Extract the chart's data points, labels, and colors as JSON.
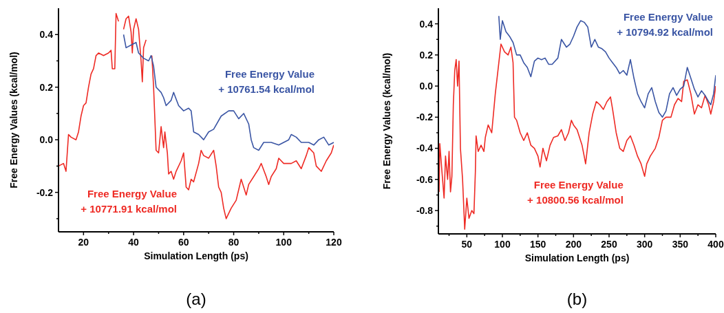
{
  "chart_data": [
    {
      "type": "line",
      "xlabel": "Simulation Length (ps)",
      "ylabel": "Free Energy Values (kcal/mol)",
      "annotations": [
        "(a)"
      ],
      "xlim": [
        10,
        120
      ],
      "ylim": [
        -0.35,
        0.5
      ],
      "xticks": [
        20,
        {
          "value": 30,
          "label": null
        },
        40,
        {
          "value": 50,
          "label": null
        },
        60,
        {
          "value": 70,
          "label": null
        },
        80,
        {
          "value": 90,
          "label": null
        },
        100,
        {
          "value": 110,
          "label": null
        },
        120
      ],
      "yticks": [
        {
          "value": -0.3,
          "label": null
        },
        -0.2,
        {
          "value": -0.1,
          "label": null
        },
        {
          "value": 0,
          "label": "0.0"
        },
        {
          "value": 0.1,
          "label": null
        },
        0.2,
        {
          "value": 0.3,
          "label": null
        },
        0.4
      ],
      "grid": false,
      "series": [
        {
          "name": "Free Energy Value\n+ 10771.91 kcal/mol",
          "color": "#ee2a24",
          "x": [
            10,
            12,
            13,
            14,
            15,
            17,
            18,
            19,
            20,
            21,
            22,
            23,
            24,
            25,
            26,
            28,
            30,
            31,
            31.5,
            32.5,
            33,
            34,
            35,
            36,
            37,
            38,
            39,
            39.5,
            40,
            41,
            42,
            43,
            43.5,
            44,
            45,
            46,
            47,
            47.3,
            48,
            48.5,
            49,
            50,
            51,
            52,
            52.5,
            53.5,
            54,
            55,
            56,
            57,
            59,
            60,
            61,
            62,
            63,
            64,
            66,
            67,
            68,
            70,
            72,
            73,
            74,
            75,
            76,
            77,
            79,
            81,
            83,
            84,
            85,
            86,
            88,
            90,
            91,
            93,
            94,
            95,
            97,
            98,
            100,
            103,
            105,
            107,
            109,
            110,
            112,
            113,
            115,
            117,
            119,
            120
          ],
          "values": [
            -0.1,
            -0.09,
            -0.12,
            0.02,
            0.01,
            0,
            0.03,
            0.09,
            0.13,
            0.14,
            0.2,
            0.25,
            0.27,
            0.32,
            0.33,
            0.32,
            0.33,
            0.34,
            0.27,
            0.27,
            0.48,
            0.45,
            null,
            0.42,
            0.46,
            0.47,
            0.41,
            0.33,
            0.42,
            0.46,
            0.42,
            0.3,
            0.22,
            0.35,
            0.38,
            null,
            null,
            0.32,
            0.2,
            0.08,
            -0.04,
            -0.05,
            0.05,
            -0.03,
            0.03,
            -0.05,
            -0.13,
            -0.12,
            -0.15,
            -0.12,
            -0.08,
            -0.05,
            -0.18,
            -0.19,
            -0.15,
            -0.16,
            -0.09,
            -0.04,
            -0.06,
            -0.07,
            -0.04,
            -0.1,
            -0.18,
            -0.2,
            -0.26,
            -0.3,
            -0.26,
            -0.23,
            -0.15,
            -0.18,
            -0.21,
            -0.17,
            -0.14,
            -0.11,
            -0.09,
            -0.14,
            -0.17,
            -0.14,
            -0.11,
            -0.07,
            -0.09,
            -0.09,
            -0.08,
            -0.11,
            -0.06,
            -0.03,
            -0.05,
            -0.1,
            -0.12,
            -0.08,
            -0.05,
            -0.02
          ]
        },
        {
          "name": "Free Energy Value\n+ 10761.54 kcal/mol",
          "color": "#3a55a4",
          "x": [
            36,
            37,
            39,
            41,
            42,
            44,
            46,
            47,
            48,
            49,
            51,
            52,
            53,
            55,
            56,
            58,
            60,
            62,
            63,
            64,
            66,
            68,
            70,
            72,
            75,
            78,
            80,
            82,
            84,
            86,
            87,
            88,
            90,
            92,
            95,
            98,
            100,
            102,
            103,
            105,
            107,
            110,
            112,
            114,
            116,
            118,
            120
          ],
          "values": [
            0.4,
            0.35,
            0.36,
            0.37,
            0.33,
            0.31,
            0.3,
            0.32,
            0.28,
            0.2,
            0.18,
            0.16,
            0.13,
            0.15,
            0.18,
            0.13,
            0.11,
            0.12,
            0.11,
            0.03,
            0.02,
            0,
            0.03,
            0.04,
            0.09,
            0.11,
            0.11,
            0.08,
            0.1,
            0.06,
            0,
            -0.03,
            -0.04,
            -0.01,
            -0.01,
            -0.02,
            -0.01,
            0,
            0.02,
            0.01,
            -0.01,
            -0.01,
            -0.02,
            0,
            0.01,
            -0.02,
            -0.01
          ]
        }
      ]
    },
    {
      "type": "line",
      "xlabel": "Simulation Length (ps)",
      "ylabel": "Free Energy Values (kcal/mol)",
      "annotations": [
        "(b)"
      ],
      "xlim": [
        10,
        400
      ],
      "ylim": [
        -0.95,
        0.5
      ],
      "xticks": [
        {
          "value": 25,
          "label": null
        },
        50,
        {
          "value": 75,
          "label": null
        },
        100,
        {
          "value": 125,
          "label": null
        },
        150,
        {
          "value": 175,
          "label": null
        },
        200,
        {
          "value": 225,
          "label": null
        },
        250,
        {
          "value": 275,
          "label": null
        },
        300,
        {
          "value": 325,
          "label": null
        },
        350,
        {
          "value": 375,
          "label": null
        },
        400
      ],
      "yticks": [
        {
          "value": -0.9,
          "label": null
        },
        -0.8,
        {
          "value": -0.7,
          "label": null
        },
        -0.6,
        {
          "value": -0.5,
          "label": null
        },
        -0.4,
        {
          "value": -0.3,
          "label": null
        },
        -0.2,
        {
          "value": -0.1,
          "label": null
        },
        {
          "value": 0,
          "label": "0.0"
        },
        {
          "value": 0.1,
          "label": null
        },
        0.2,
        {
          "value": 0.3,
          "label": null
        },
        0.4
      ],
      "grid": false,
      "series": [
        {
          "name": "Free Energy Value\n+ 10800.56 kcal/mol",
          "color": "#ee2a24",
          "x": [
            11,
            12,
            15,
            18,
            20,
            23,
            25,
            27,
            29,
            31,
            33,
            35,
            37,
            39,
            41,
            44,
            47,
            50,
            53,
            57,
            60,
            62,
            63,
            66,
            70,
            74,
            76,
            80,
            85,
            90,
            95,
            98,
            103,
            108,
            112,
            115,
            117,
            120,
            125,
            130,
            135,
            140,
            145,
            150,
            153,
            157,
            162,
            167,
            172,
            178,
            183,
            188,
            193,
            197,
            200,
            205,
            212,
            215,
            217,
            222,
            227,
            232,
            237,
            242,
            247,
            252,
            255,
            260,
            265,
            270,
            275,
            280,
            285,
            290,
            295,
            300,
            303,
            308,
            315,
            320,
            325,
            330,
            337,
            342,
            347,
            352,
            355,
            360,
            365,
            370,
            375,
            380,
            385,
            390,
            393,
            397,
            400
          ],
          "values": [
            -0.68,
            -0.37,
            -0.55,
            -0.72,
            -0.45,
            -0.6,
            -0.42,
            -0.68,
            -0.58,
            -0.12,
            0.1,
            0.17,
            0,
            0.16,
            -0.4,
            -0.6,
            -0.92,
            -0.72,
            -0.85,
            -0.8,
            -0.82,
            -0.55,
            -0.32,
            -0.42,
            -0.38,
            -0.42,
            -0.33,
            -0.25,
            -0.3,
            -0.05,
            0.15,
            0.27,
            0.22,
            0.2,
            0.25,
            0.15,
            -0.2,
            -0.22,
            -0.3,
            -0.35,
            -0.3,
            -0.38,
            -0.4,
            -0.45,
            -0.52,
            -0.4,
            -0.48,
            -0.38,
            -0.33,
            -0.32,
            -0.28,
            -0.35,
            -0.3,
            -0.22,
            -0.25,
            -0.28,
            -0.38,
            -0.45,
            -0.5,
            -0.3,
            -0.18,
            -0.1,
            -0.12,
            -0.15,
            -0.1,
            -0.07,
            -0.15,
            -0.3,
            -0.4,
            -0.42,
            -0.35,
            -0.32,
            -0.38,
            -0.45,
            -0.5,
            -0.58,
            -0.5,
            -0.45,
            -0.4,
            -0.33,
            -0.22,
            -0.2,
            -0.2,
            -0.12,
            -0.08,
            -0.1,
            0.03,
            0.04,
            -0.05,
            -0.18,
            -0.12,
            -0.14,
            -0.06,
            -0.12,
            -0.18,
            -0.1,
            0
          ]
        },
        {
          "name": "Free Energy Value\n+ 10794.92 kcal/mol",
          "color": "#3a55a4",
          "x": [
            95,
            97,
            100,
            105,
            110,
            115,
            120,
            125,
            130,
            135,
            140,
            145,
            150,
            155,
            160,
            165,
            170,
            178,
            183,
            190,
            195,
            200,
            205,
            210,
            215,
            220,
            225,
            230,
            235,
            240,
            245,
            250,
            255,
            260,
            265,
            270,
            275,
            280,
            285,
            290,
            295,
            300,
            305,
            310,
            315,
            320,
            325,
            330,
            335,
            340,
            345,
            350,
            355,
            360,
            365,
            370,
            375,
            380,
            385,
            390,
            393,
            397,
            400
          ],
          "values": [
            0.45,
            0.3,
            0.42,
            0.35,
            0.32,
            0.28,
            0.2,
            0.2,
            0.15,
            0.12,
            0.06,
            0.16,
            0.18,
            0.17,
            0.18,
            0.14,
            0.14,
            0.18,
            0.3,
            0.25,
            0.27,
            0.32,
            0.38,
            0.42,
            0.41,
            0.38,
            0.25,
            0.3,
            0.25,
            0.24,
            0.22,
            0.18,
            0.15,
            0.12,
            0.08,
            0.1,
            0.07,
            0.17,
            0.05,
            -0.05,
            -0.1,
            -0.14,
            -0.05,
            -0.01,
            -0.1,
            -0.17,
            -0.2,
            -0.16,
            -0.05,
            -0.01,
            -0.06,
            -0.02,
            0,
            0.12,
            0.05,
            -0.02,
            -0.07,
            -0.03,
            -0.06,
            -0.1,
            -0.12,
            -0.05,
            0.07
          ]
        }
      ]
    }
  ]
}
